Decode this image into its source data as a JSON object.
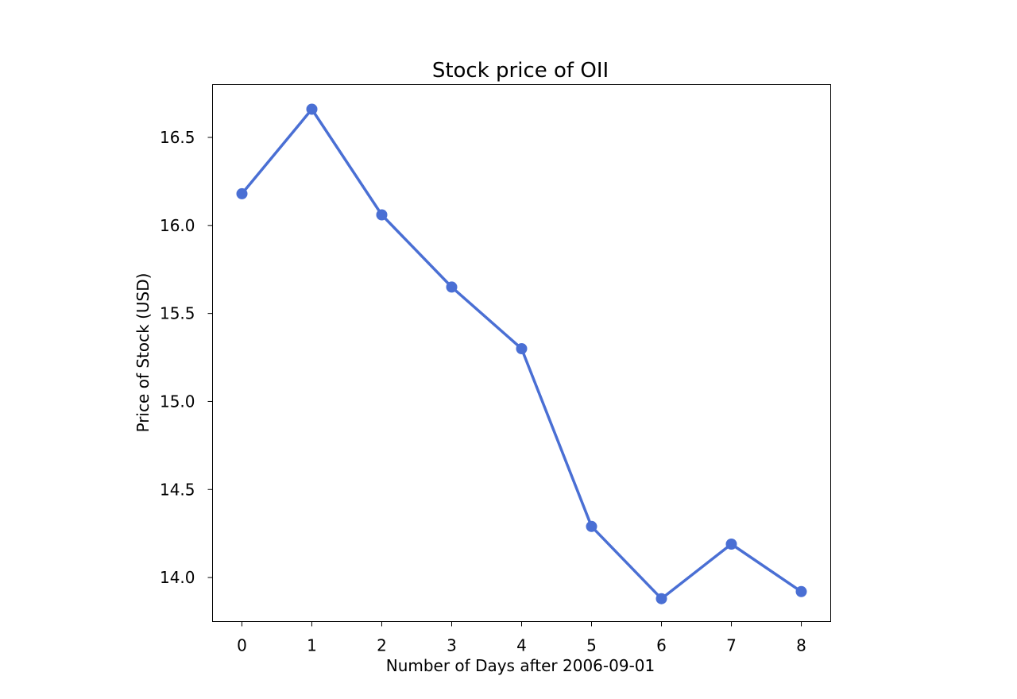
{
  "chart_data": {
    "type": "line",
    "title": "Stock price of OII",
    "xlabel": "Number of Days after 2006-09-01",
    "ylabel": "Price of Stock (USD)",
    "x": [
      0,
      1,
      2,
      3,
      4,
      5,
      6,
      7,
      8
    ],
    "series": [
      {
        "values": [
          16.18,
          16.66,
          16.06,
          15.65,
          15.3,
          14.29,
          13.88,
          14.19,
          13.92
        ],
        "color": "#4a6fd4"
      }
    ],
    "x_ticks": [
      "0",
      "1",
      "2",
      "3",
      "4",
      "5",
      "6",
      "7",
      "8"
    ],
    "y_ticks": [
      "14.0",
      "14.5",
      "15.0",
      "15.5",
      "16.0",
      "16.5"
    ],
    "xlim": [
      -0.42,
      8.42
    ],
    "ylim": [
      13.75,
      16.8
    ],
    "grid": false,
    "markers": true
  }
}
